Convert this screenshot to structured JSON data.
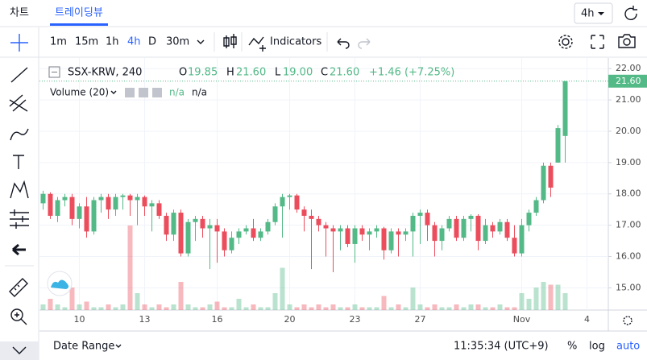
{
  "tabs": [
    "차트",
    "트레이딩뷰"
  ],
  "interval_select": "4h",
  "toolbar": {
    "intervals": [
      "1m",
      "15m",
      "1h",
      "4h",
      "D",
      "30m"
    ],
    "indicators": "Indicators"
  },
  "bottom_bar": {
    "date_range": "Date Range",
    "clock": "11:35:34 (UTC+9)",
    "percent": "%",
    "log": "log",
    "auto": "auto"
  },
  "chart_data": {
    "type": "candlestick",
    "symbol": "SSX-KRW, 240",
    "ohlc_labels": [
      "O",
      "H",
      "L",
      "C"
    ],
    "ohlc_values": [
      "19.85",
      "21.60",
      "19.00",
      "21.60"
    ],
    "change": "+1.46 (+7.25%)",
    "volume_label": "Volume (20)",
    "volume_values": [
      "n/a",
      "n/a"
    ],
    "up_color": "#53b987",
    "down_color": "#eb4d5c",
    "grid": true,
    "ylim": [
      14.29,
      22.34
    ],
    "yticks": [
      {
        "value": 15,
        "label": "15.00"
      },
      {
        "value": 16,
        "label": "16.00"
      },
      {
        "value": 17,
        "label": "17.00"
      },
      {
        "value": 18,
        "label": "18.00"
      },
      {
        "value": 19,
        "label": "19.00"
      },
      {
        "value": 20,
        "label": "20.00"
      },
      {
        "value": 21,
        "label": "21.00"
      },
      {
        "value": 22,
        "label": "22.00"
      }
    ],
    "last_price": {
      "value": 21.6,
      "label": "21.60"
    },
    "categories": [
      null,
      null,
      null,
      null,
      null,
      "10",
      null,
      null,
      null,
      null,
      null,
      null,
      null,
      null,
      "13",
      null,
      null,
      null,
      null,
      null,
      null,
      null,
      null,
      null,
      "16",
      null,
      null,
      null,
      null,
      null,
      null,
      null,
      null,
      null,
      "20",
      null,
      null,
      null,
      null,
      null,
      null,
      null,
      null,
      "23",
      null,
      null,
      null,
      null,
      null,
      null,
      null,
      null,
      "27",
      null,
      null,
      null,
      null,
      null,
      null,
      null,
      null,
      null,
      null,
      null,
      null,
      null,
      "Nov",
      null,
      null,
      null,
      null,
      null,
      null,
      null,
      null,
      "4"
    ],
    "candles": [
      [
        17.7,
        18.1,
        17.5,
        18.0
      ],
      [
        18.0,
        18.05,
        17.2,
        17.3
      ],
      [
        17.3,
        17.9,
        17.1,
        17.8
      ],
      [
        17.8,
        18.0,
        17.6,
        17.9
      ],
      [
        17.9,
        18.0,
        17.0,
        17.2
      ],
      [
        17.2,
        17.7,
        16.9,
        17.6
      ],
      [
        17.6,
        17.9,
        16.6,
        16.8
      ],
      [
        16.8,
        17.9,
        16.7,
        17.8
      ],
      [
        17.8,
        18.0,
        17.4,
        17.9
      ],
      [
        17.9,
        18.0,
        17.2,
        17.5
      ],
      [
        17.5,
        18.0,
        17.3,
        17.9
      ],
      [
        17.9,
        18.0,
        17.5,
        17.95
      ],
      [
        17.95,
        18.0,
        17.3,
        17.8
      ],
      [
        17.8,
        18.0,
        17.0,
        17.9
      ],
      [
        17.9,
        17.95,
        17.3,
        17.6
      ],
      [
        17.6,
        17.8,
        16.8,
        17.7
      ],
      [
        17.7,
        17.8,
        17.2,
        17.3
      ],
      [
        17.3,
        17.4,
        16.5,
        16.7
      ],
      [
        16.7,
        17.5,
        16.5,
        17.4
      ],
      [
        17.4,
        17.5,
        16.0,
        16.1
      ],
      [
        16.1,
        17.2,
        16.0,
        17.1
      ],
      [
        17.1,
        17.3,
        16.5,
        17.2
      ],
      [
        17.2,
        17.3,
        16.6,
        16.9
      ],
      [
        16.9,
        17.2,
        15.6,
        17.0
      ],
      [
        17.0,
        17.2,
        15.8,
        16.8
      ],
      [
        16.8,
        16.9,
        16.0,
        16.2
      ],
      [
        16.2,
        16.8,
        16.1,
        16.6
      ],
      [
        16.6,
        16.9,
        16.4,
        16.8
      ],
      [
        16.8,
        17.0,
        16.7,
        16.9
      ],
      [
        16.9,
        17.2,
        16.5,
        16.6
      ],
      [
        16.6,
        16.9,
        16.5,
        16.8
      ],
      [
        16.8,
        17.2,
        16.7,
        17.1
      ],
      [
        17.1,
        17.7,
        17.0,
        17.6
      ],
      [
        17.6,
        18.0,
        16.6,
        17.9
      ],
      [
        17.9,
        18.0,
        17.5,
        17.95
      ],
      [
        17.95,
        18.0,
        17.4,
        17.5
      ],
      [
        17.5,
        17.6,
        16.8,
        17.3
      ],
      [
        17.3,
        17.5,
        15.6,
        17.2
      ],
      [
        17.2,
        17.3,
        16.8,
        17.0
      ],
      [
        17.0,
        17.1,
        16.0,
        16.9
      ],
      [
        16.9,
        17.0,
        15.5,
        16.8
      ],
      [
        16.8,
        17.0,
        16.2,
        16.9
      ],
      [
        16.9,
        17.0,
        16.3,
        16.4
      ],
      [
        16.4,
        17.0,
        15.8,
        16.9
      ],
      [
        16.9,
        17.0,
        16.5,
        16.7
      ],
      [
        16.7,
        16.9,
        16.2,
        16.8
      ],
      [
        16.8,
        17.0,
        16.6,
        16.9
      ],
      [
        16.9,
        16.95,
        15.9,
        16.2
      ],
      [
        16.2,
        16.9,
        16.1,
        16.8
      ],
      [
        16.8,
        16.9,
        16.0,
        16.7
      ],
      [
        16.7,
        16.9,
        16.5,
        16.8
      ],
      [
        16.8,
        17.4,
        16.0,
        17.3
      ],
      [
        17.3,
        17.5,
        16.4,
        17.4
      ],
      [
        17.4,
        17.5,
        16.5,
        17.0
      ],
      [
        17.0,
        17.1,
        16.0,
        16.5
      ],
      [
        16.5,
        17.0,
        16.2,
        16.9
      ],
      [
        16.9,
        17.3,
        16.8,
        17.2
      ],
      [
        17.2,
        17.3,
        16.5,
        16.6
      ],
      [
        16.6,
        17.3,
        16.5,
        17.2
      ],
      [
        17.2,
        17.35,
        16.8,
        17.3
      ],
      [
        17.3,
        17.35,
        16.2,
        16.5
      ],
      [
        16.5,
        17.2,
        16.4,
        17.0
      ],
      [
        17.0,
        17.1,
        16.6,
        16.8
      ],
      [
        16.8,
        17.2,
        16.7,
        17.1
      ],
      [
        17.1,
        17.2,
        16.5,
        16.6
      ],
      [
        16.6,
        17.0,
        16.0,
        16.1
      ],
      [
        16.1,
        17.2,
        16.0,
        17.0
      ],
      [
        17.0,
        17.5,
        16.8,
        17.4
      ],
      [
        17.4,
        17.9,
        17.3,
        17.8
      ],
      [
        17.8,
        19.0,
        17.7,
        18.9
      ],
      [
        18.9,
        19.0,
        17.9,
        18.2
      ],
      [
        19.0,
        20.2,
        19.0,
        20.1
      ],
      [
        19.85,
        21.6,
        19.0,
        21.6
      ],
      null,
      null,
      null
    ],
    "volume": [
      2,
      4,
      2,
      1,
      8,
      2,
      3,
      1,
      1,
      2,
      1,
      2,
      30,
      6,
      2,
      1,
      2,
      1,
      2,
      10,
      2,
      1,
      1,
      2,
      3,
      1,
      1,
      4,
      1,
      2,
      1,
      1,
      6,
      15,
      2,
      1,
      2,
      1,
      2,
      1,
      2,
      1,
      1,
      2,
      1,
      1,
      1,
      5,
      1,
      2,
      1,
      8,
      2,
      1,
      2,
      1,
      1,
      2,
      1,
      2,
      2,
      1,
      1,
      2,
      1,
      1,
      6,
      4,
      8,
      10,
      9,
      9,
      6,
      null,
      null,
      null
    ]
  }
}
